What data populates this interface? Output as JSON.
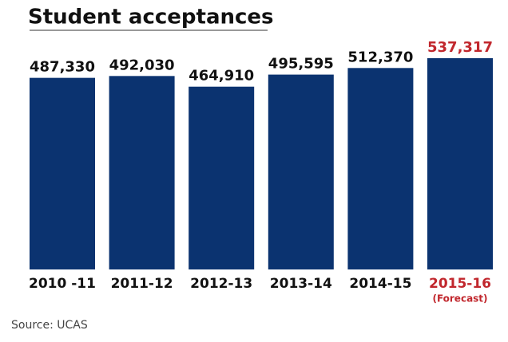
{
  "chart_data": {
    "type": "bar",
    "title": "Student acceptances",
    "categories": [
      "2010 -11",
      "2011-12",
      "2012-13",
      "2013-14",
      "2014-15",
      "2015-16"
    ],
    "values": [
      487330,
      492030,
      464910,
      495595,
      512370,
      537317
    ],
    "value_labels": [
      "487,330",
      "492,030",
      "464,910",
      "495,595",
      "512,370",
      "537,317"
    ],
    "color": "#0b3370",
    "label_colors": [
      "#111111",
      "#111111",
      "#111111",
      "#111111",
      "#111111",
      "#c1272d"
    ],
    "annotation": "(Forecast)",
    "source": "Source: UCAS"
  }
}
